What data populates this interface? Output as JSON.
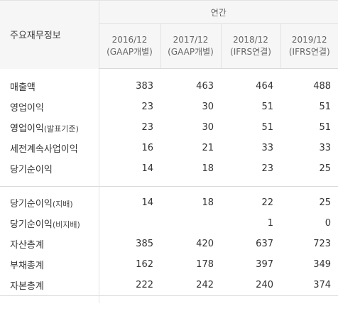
{
  "header": {
    "label": "주요재무정보",
    "period": "연간",
    "columns": [
      {
        "year": "2016/12",
        "basis": "(GAAP개별)"
      },
      {
        "year": "2017/12",
        "basis": "(GAAP개별)"
      },
      {
        "year": "2018/12",
        "basis": "(IFRS연결)"
      },
      {
        "year": "2019/12",
        "basis": "(IFRS연결)"
      }
    ]
  },
  "group1": [
    {
      "label": "매출액",
      "suffix": "",
      "values": [
        "383",
        "463",
        "464",
        "488"
      ]
    },
    {
      "label": "영업이익",
      "suffix": "",
      "values": [
        "23",
        "30",
        "51",
        "51"
      ]
    },
    {
      "label": "영업이익",
      "suffix": "(발표기준)",
      "values": [
        "23",
        "30",
        "51",
        "51"
      ]
    },
    {
      "label": "세전계속사업이익",
      "suffix": "",
      "values": [
        "16",
        "21",
        "33",
        "33"
      ]
    },
    {
      "label": "당기순이익",
      "suffix": "",
      "values": [
        "14",
        "18",
        "23",
        "25"
      ]
    }
  ],
  "group2": [
    {
      "label": "당기순이익",
      "suffix": "(지배)",
      "values": [
        "14",
        "18",
        "22",
        "25"
      ]
    },
    {
      "label": "당기순이익",
      "suffix": "(비지배)",
      "values": [
        "",
        "",
        "1",
        "0"
      ]
    },
    {
      "label": "자산총계",
      "suffix": "",
      "values": [
        "385",
        "420",
        "637",
        "723"
      ]
    },
    {
      "label": "부채총계",
      "suffix": "",
      "values": [
        "162",
        "178",
        "397",
        "349"
      ]
    },
    {
      "label": "자본총계",
      "suffix": "",
      "values": [
        "222",
        "242",
        "240",
        "374"
      ]
    }
  ]
}
